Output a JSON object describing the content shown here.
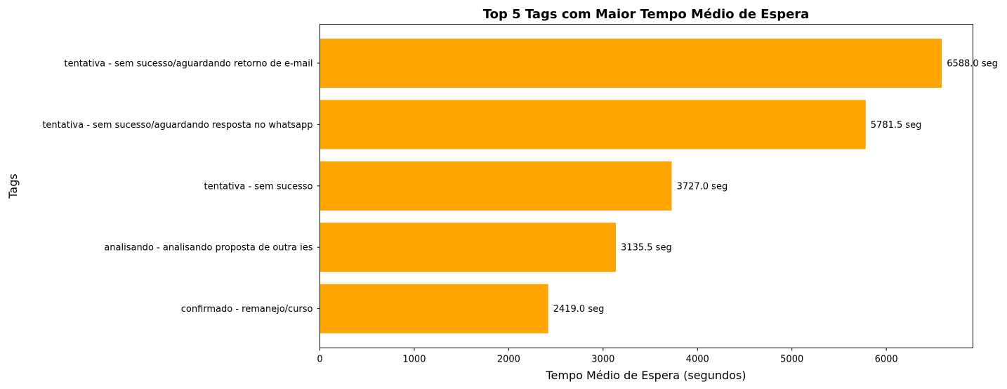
{
  "chart_data": {
    "type": "bar",
    "orientation": "horizontal",
    "title": "Top 5 Tags com Maior Tempo Médio de Espera",
    "xlabel": "Tempo Médio de Espera (segundos)",
    "ylabel": "Tags",
    "categories": [
      "tentativa - sem sucesso/aguardando retorno de e-mail",
      "tentativa - sem sucesso/aguardando resposta no whatsapp",
      "tentativa - sem sucesso",
      "analisando - analisando proposta de outra ies",
      "confirmado - remanejo/curso"
    ],
    "values": [
      6588.0,
      5781.5,
      3727.0,
      3135.5,
      2419.0
    ],
    "data_labels": [
      "6588.0 seg",
      "5781.5 seg",
      "3727.0 seg",
      "3135.5 seg",
      "2419.0 seg"
    ],
    "xlim": [
      0,
      6917.4
    ],
    "xticks": [
      0,
      1000,
      2000,
      3000,
      4000,
      5000,
      6000
    ],
    "xtick_labels": [
      "0",
      "1000",
      "2000",
      "3000",
      "4000",
      "5000",
      "6000"
    ],
    "bar_color": "#FFA500",
    "grid": false,
    "legend": "none"
  }
}
